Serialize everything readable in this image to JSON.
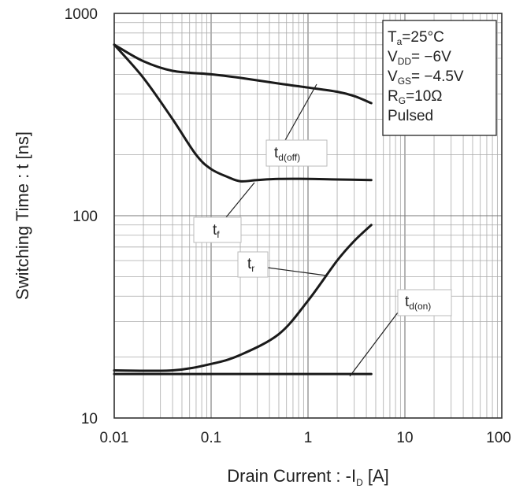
{
  "chart_data": {
    "type": "line",
    "title": "",
    "xlabel": "Drain Current : -I",
    "xlabel_sub": "D",
    "xlabel_unit": "[A]",
    "ylabel": "Switching Time : t [ns]",
    "x_scale": "log",
    "y_scale": "log",
    "xlim": [
      0.01,
      100
    ],
    "ylim": [
      10,
      1000
    ],
    "grid": true,
    "x_ticks": [
      "0.01",
      "0.1",
      "1",
      "10",
      "100"
    ],
    "y_ticks": [
      "10",
      "100",
      "1000"
    ],
    "conditions": {
      "ta": {
        "main": "T",
        "sub": "a",
        "rest": "=25°C"
      },
      "vdd": {
        "main": "V",
        "sub": "DD",
        "rest": "= −6V"
      },
      "vgs": {
        "main": "V",
        "sub": "GS",
        "rest": "= −4.5V"
      },
      "rg": {
        "main": "R",
        "sub": "G",
        "rest": "=10Ω"
      },
      "mode": "Pulsed"
    },
    "series": [
      {
        "main": "t",
        "sub": "d(off)",
        "x": [
          0.01,
          0.02,
          0.04,
          0.1,
          0.2,
          0.5,
          1,
          2,
          3,
          4.5
        ],
        "y": [
          700,
          580,
          520,
          500,
          480,
          450,
          430,
          410,
          390,
          360
        ]
      },
      {
        "main": "t",
        "sub": "f",
        "x": [
          0.01,
          0.02,
          0.04,
          0.07,
          0.1,
          0.15,
          0.2,
          0.3,
          0.5,
          1,
          2,
          4.5
        ],
        "y": [
          700,
          480,
          300,
          200,
          170,
          155,
          148,
          150,
          152,
          152,
          151,
          150
        ]
      },
      {
        "main": "t",
        "sub": "r",
        "x": [
          0.01,
          0.04,
          0.1,
          0.2,
          0.5,
          1,
          2,
          3,
          4.5
        ],
        "y": [
          17.2,
          17.2,
          18.5,
          20.5,
          26,
          38,
          60,
          75,
          90
        ]
      },
      {
        "main": "t",
        "sub": "d(on)",
        "x": [
          0.01,
          4.5
        ],
        "y": [
          16.5,
          16.5
        ]
      }
    ]
  }
}
